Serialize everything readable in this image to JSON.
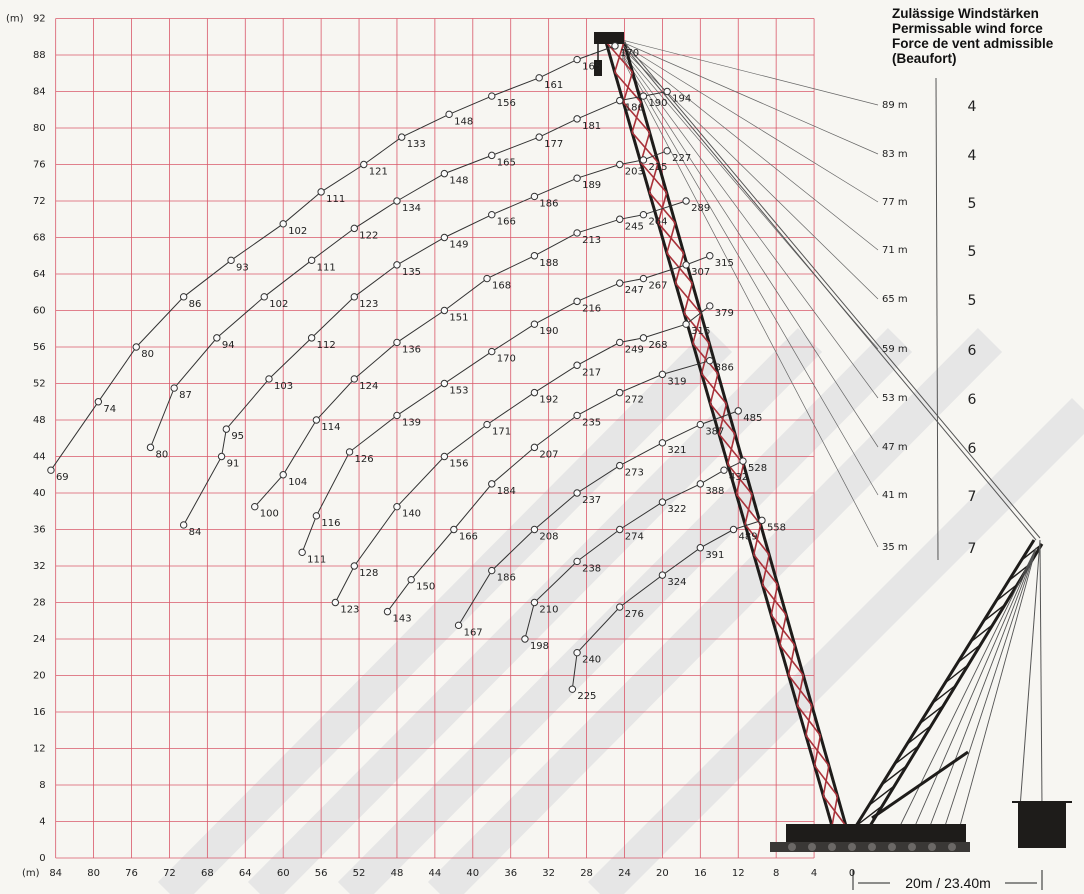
{
  "wind_header": {
    "line1": "Zulässige Windstärken",
    "line2": "Permissable wind force",
    "line3": "Force de vent admissible",
    "line4": "(Beaufort)"
  },
  "axes": {
    "y_unit": "(m)",
    "x_unit": "(m)",
    "y_ticks": [
      "0",
      "4",
      "8",
      "12",
      "16",
      "20",
      "24",
      "28",
      "32",
      "36",
      "40",
      "44",
      "48",
      "52",
      "56",
      "60",
      "64",
      "68",
      "72",
      "76",
      "80",
      "84",
      "88",
      "92"
    ],
    "y_tick_values": [
      0,
      4,
      8,
      12,
      16,
      20,
      24,
      28,
      32,
      36,
      40,
      44,
      48,
      52,
      56,
      60,
      64,
      68,
      72,
      76,
      80,
      84,
      88,
      92
    ],
    "x_ticks": [
      "84",
      "80",
      "76",
      "72",
      "68",
      "64",
      "60",
      "56",
      "52",
      "48",
      "44",
      "40",
      "36",
      "32",
      "28",
      "24",
      "20",
      "16",
      "12",
      "8",
      "4",
      "0"
    ],
    "x_tick_values": [
      84,
      80,
      76,
      72,
      68,
      64,
      60,
      56,
      52,
      48,
      44,
      40,
      36,
      32,
      28,
      24,
      20,
      16,
      12,
      8,
      4,
      0
    ],
    "grid_x_min": 84,
    "grid_x_max": 4,
    "grid_y_max": 92
  },
  "counterweight_label": "20m / 23.40m",
  "boom_lengths": [
    {
      "label": "89 m",
      "wind": "4",
      "points": [
        {
          "x": 84.5,
          "y": 42.5,
          "v": "69"
        },
        {
          "x": 79.5,
          "y": 50,
          "v": "74"
        },
        {
          "x": 75.5,
          "y": 56,
          "v": "80"
        },
        {
          "x": 70.5,
          "y": 61.5,
          "v": "86"
        },
        {
          "x": 65.5,
          "y": 65.5,
          "v": "93"
        },
        {
          "x": 60,
          "y": 69.5,
          "v": "102"
        },
        {
          "x": 56,
          "y": 73,
          "v": "111"
        },
        {
          "x": 51.5,
          "y": 76,
          "v": "121"
        },
        {
          "x": 47.5,
          "y": 79,
          "v": "133"
        },
        {
          "x": 42.5,
          "y": 81.5,
          "v": "148"
        },
        {
          "x": 38,
          "y": 83.5,
          "v": "156"
        },
        {
          "x": 33,
          "y": 85.5,
          "v": "161"
        },
        {
          "x": 29,
          "y": 87.5,
          "v": "165"
        },
        {
          "x": 25,
          "y": 89,
          "v": "170"
        }
      ]
    },
    {
      "label": "83 m",
      "wind": "4",
      "points": [
        {
          "x": 74,
          "y": 45,
          "v": "80"
        },
        {
          "x": 71.5,
          "y": 51.5,
          "v": "87"
        },
        {
          "x": 67,
          "y": 57,
          "v": "94"
        },
        {
          "x": 62,
          "y": 61.5,
          "v": "102"
        },
        {
          "x": 57,
          "y": 65.5,
          "v": "111"
        },
        {
          "x": 52.5,
          "y": 69,
          "v": "122"
        },
        {
          "x": 48,
          "y": 72,
          "v": "134"
        },
        {
          "x": 43,
          "y": 75,
          "v": "148"
        },
        {
          "x": 38,
          "y": 77,
          "v": "165"
        },
        {
          "x": 33,
          "y": 79,
          "v": "177"
        },
        {
          "x": 29,
          "y": 81,
          "v": "181"
        },
        {
          "x": 24.5,
          "y": 83,
          "v": "186"
        },
        {
          "x": 22,
          "y": 83.5,
          "v": "190"
        },
        {
          "x": 19.5,
          "y": 84,
          "v": "194"
        }
      ]
    },
    {
      "label": "77 m",
      "wind": "5",
      "points": [
        {
          "x": 70.5,
          "y": 36.5,
          "v": "84"
        },
        {
          "x": 66.5,
          "y": 44,
          "v": "91"
        },
        {
          "x": 66,
          "y": 47,
          "v": "95"
        },
        {
          "x": 61.5,
          "y": 52.5,
          "v": "103"
        },
        {
          "x": 57,
          "y": 57,
          "v": "112"
        },
        {
          "x": 52.5,
          "y": 61.5,
          "v": "123"
        },
        {
          "x": 48,
          "y": 65,
          "v": "135"
        },
        {
          "x": 43,
          "y": 68,
          "v": "149"
        },
        {
          "x": 38,
          "y": 70.5,
          "v": "166"
        },
        {
          "x": 33.5,
          "y": 72.5,
          "v": "186"
        },
        {
          "x": 29,
          "y": 74.5,
          "v": "189"
        },
        {
          "x": 24.5,
          "y": 76,
          "v": "203"
        },
        {
          "x": 22,
          "y": 76.5,
          "v": "215"
        },
        {
          "x": 19.5,
          "y": 77.5,
          "v": "227"
        }
      ]
    },
    {
      "label": "71 m",
      "wind": "5",
      "points": [
        {
          "x": 63,
          "y": 38.5,
          "v": "100"
        },
        {
          "x": 60,
          "y": 42,
          "v": "104"
        },
        {
          "x": 56.5,
          "y": 48,
          "v": "114"
        },
        {
          "x": 52.5,
          "y": 52.5,
          "v": "124"
        },
        {
          "x": 48,
          "y": 56.5,
          "v": "136"
        },
        {
          "x": 43,
          "y": 60,
          "v": "151"
        },
        {
          "x": 38.5,
          "y": 63.5,
          "v": "168"
        },
        {
          "x": 33.5,
          "y": 66,
          "v": "188"
        },
        {
          "x": 29,
          "y": 68.5,
          "v": "213"
        },
        {
          "x": 24.5,
          "y": 70,
          "v": "245"
        },
        {
          "x": 22,
          "y": 70.5,
          "v": "264"
        },
        {
          "x": 17.5,
          "y": 72,
          "v": "289"
        }
      ]
    },
    {
      "label": "65 m",
      "wind": "5",
      "points": [
        {
          "x": 58,
          "y": 33.5,
          "v": "111"
        },
        {
          "x": 56.5,
          "y": 37.5,
          "v": "116"
        },
        {
          "x": 53,
          "y": 44.5,
          "v": "126"
        },
        {
          "x": 48,
          "y": 48.5,
          "v": "139"
        },
        {
          "x": 43,
          "y": 52,
          "v": "153"
        },
        {
          "x": 38,
          "y": 55.5,
          "v": "170"
        },
        {
          "x": 33.5,
          "y": 58.5,
          "v": "190"
        },
        {
          "x": 29,
          "y": 61,
          "v": "216"
        },
        {
          "x": 24.5,
          "y": 63,
          "v": "247"
        },
        {
          "x": 22,
          "y": 63.5,
          "v": "267"
        },
        {
          "x": 17.5,
          "y": 65,
          "v": "307"
        },
        {
          "x": 15,
          "y": 66,
          "v": "315"
        }
      ]
    },
    {
      "label": "59 m",
      "wind": "6",
      "points": [
        {
          "x": 54.5,
          "y": 28,
          "v": "123"
        },
        {
          "x": 52.5,
          "y": 32,
          "v": "128"
        },
        {
          "x": 48,
          "y": 38.5,
          "v": "140"
        },
        {
          "x": 43,
          "y": 44,
          "v": "156"
        },
        {
          "x": 38.5,
          "y": 47.5,
          "v": "171"
        },
        {
          "x": 33.5,
          "y": 51,
          "v": "192"
        },
        {
          "x": 29,
          "y": 54,
          "v": "217"
        },
        {
          "x": 24.5,
          "y": 56.5,
          "v": "249"
        },
        {
          "x": 22,
          "y": 57,
          "v": "268"
        },
        {
          "x": 17.5,
          "y": 58.5,
          "v": "316"
        },
        {
          "x": 15,
          "y": 60.5,
          "v": "379"
        }
      ]
    },
    {
      "label": "53 m",
      "wind": "6",
      "points": [
        {
          "x": 49,
          "y": 27,
          "v": "143"
        },
        {
          "x": 46.5,
          "y": 30.5,
          "v": "150"
        },
        {
          "x": 42,
          "y": 36,
          "v": "166"
        },
        {
          "x": 38,
          "y": 41,
          "v": "184"
        },
        {
          "x": 33.5,
          "y": 45,
          "v": "207"
        },
        {
          "x": 29,
          "y": 48.5,
          "v": "235"
        },
        {
          "x": 24.5,
          "y": 51,
          "v": "272"
        },
        {
          "x": 20,
          "y": 53,
          "v": "319"
        },
        {
          "x": 15,
          "y": 54.5,
          "v": "386"
        }
      ]
    },
    {
      "label": "47 m",
      "wind": "6",
      "points": [
        {
          "x": 41.5,
          "y": 25.5,
          "v": "167"
        },
        {
          "x": 38,
          "y": 31.5,
          "v": "186"
        },
        {
          "x": 33.5,
          "y": 36,
          "v": "208"
        },
        {
          "x": 29,
          "y": 40,
          "v": "237"
        },
        {
          "x": 24.5,
          "y": 43,
          "v": "273"
        },
        {
          "x": 20,
          "y": 45.5,
          "v": "321"
        },
        {
          "x": 16,
          "y": 47.5,
          "v": "387"
        },
        {
          "x": 12,
          "y": 49,
          "v": "485"
        }
      ]
    },
    {
      "label": "41 m",
      "wind": "7",
      "points": [
        {
          "x": 34.5,
          "y": 24,
          "v": "198"
        },
        {
          "x": 33.5,
          "y": 28,
          "v": "210"
        },
        {
          "x": 29,
          "y": 32.5,
          "v": "238"
        },
        {
          "x": 24.5,
          "y": 36,
          "v": "274"
        },
        {
          "x": 20,
          "y": 39,
          "v": "322"
        },
        {
          "x": 16,
          "y": 41,
          "v": "388"
        },
        {
          "x": 13.5,
          "y": 42.5,
          "v": "432"
        },
        {
          "x": 11.5,
          "y": 43.5,
          "v": "528"
        }
      ]
    },
    {
      "label": "35 m",
      "wind": "7",
      "points": [
        {
          "x": 29.5,
          "y": 18.5,
          "v": "225"
        },
        {
          "x": 29,
          "y": 22.5,
          "v": "240"
        },
        {
          "x": 24.5,
          "y": 27.5,
          "v": "276"
        },
        {
          "x": 20,
          "y": 31,
          "v": "324"
        },
        {
          "x": 16,
          "y": 34,
          "v": "391"
        },
        {
          "x": 12.5,
          "y": 36,
          "v": "489"
        },
        {
          "x": 9.5,
          "y": 37,
          "v": "558"
        }
      ]
    }
  ],
  "colors": {
    "grid": "#d9586a",
    "curve": "#333333",
    "crane": "#1e1c1a",
    "boom_red": "#a9323a",
    "watermark": "#e6e6e6"
  }
}
